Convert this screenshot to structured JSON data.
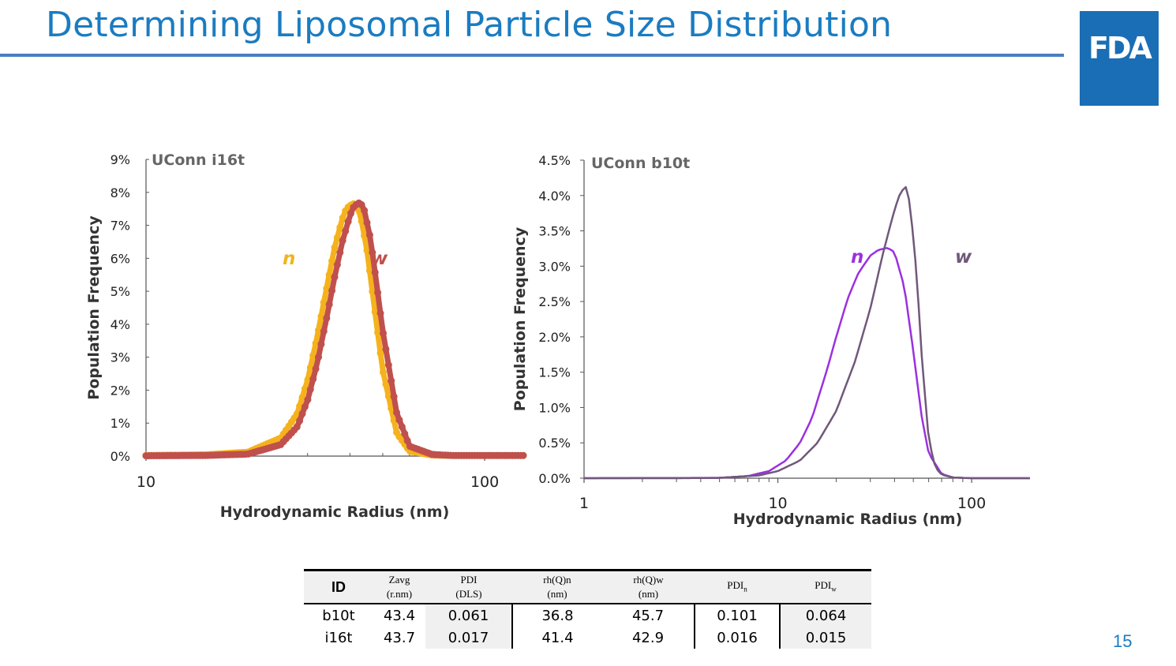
{
  "slide": {
    "title": "Determining Liposomal Particle Size Distribution",
    "logo_text": "FDA",
    "page_number": "15",
    "colors": {
      "title": "#1a7cc1",
      "rule": "#4a7fc0",
      "logo_bg": "#1a6eb5"
    }
  },
  "chart_data": [
    {
      "type": "line",
      "title": "UConn i16t",
      "xlabel": "Hydrodynamic Radius (nm)",
      "ylabel": "Population Frequency",
      "x_scale": "log",
      "xlim": [
        10,
        130
      ],
      "ylim": [
        0,
        9
      ],
      "y_unit": "%",
      "x_ticks": [
        10,
        100
      ],
      "y_ticks": [
        0,
        1,
        2,
        3,
        4,
        5,
        6,
        7,
        8,
        9
      ],
      "y_tick_labels": [
        "0%",
        "1%",
        "2%",
        "3%",
        "4%",
        "5%",
        "6%",
        "7%",
        "8%",
        "9%"
      ],
      "series_labels": [
        {
          "text": "n",
          "color": "#f2b31c"
        },
        {
          "text": "w",
          "color": "#c0504d"
        }
      ],
      "series": [
        {
          "name": "n",
          "color": "#f5b21c",
          "style": "markers",
          "peak_x": 41.4,
          "x": [
            10,
            15,
            20,
            25,
            28,
            30,
            32,
            34,
            36,
            38,
            39,
            40,
            41,
            41.4,
            42,
            43,
            45,
            47,
            50,
            55,
            60,
            70,
            80,
            100,
            130
          ],
          "y": [
            0.02,
            0.04,
            0.12,
            0.55,
            1.3,
            2.3,
            3.6,
            5.0,
            6.3,
            7.2,
            7.5,
            7.6,
            7.65,
            7.65,
            7.6,
            7.3,
            6.2,
            4.7,
            2.6,
            0.7,
            0.15,
            0.03,
            0.02,
            0.02,
            0.02
          ]
        },
        {
          "name": "w",
          "color": "#c0504d",
          "style": "markers",
          "peak_x": 42.9,
          "x": [
            10,
            15,
            20,
            25,
            28,
            30,
            32,
            34,
            36,
            38,
            40,
            41,
            42,
            42.9,
            44,
            46,
            48,
            50,
            55,
            60,
            70,
            80,
            100,
            130
          ],
          "y": [
            0.01,
            0.02,
            0.06,
            0.35,
            0.9,
            1.7,
            2.8,
            4.1,
            5.4,
            6.5,
            7.3,
            7.55,
            7.65,
            7.7,
            7.5,
            6.6,
            5.2,
            3.8,
            1.3,
            0.3,
            0.05,
            0.02,
            0.02,
            0.02
          ]
        }
      ]
    },
    {
      "type": "line",
      "title": "UConn b10t",
      "xlabel": "Hydrodynamic Radius (nm)",
      "ylabel": "Population Frequency",
      "x_scale": "log",
      "xlim": [
        1,
        200
      ],
      "ylim": [
        0,
        4.5
      ],
      "y_unit": "%",
      "x_ticks": [
        1,
        10,
        100
      ],
      "y_ticks": [
        0,
        0.5,
        1,
        1.5,
        2,
        2.5,
        3,
        3.5,
        4,
        4.5
      ],
      "y_tick_labels": [
        "0.0%",
        "0.5%",
        "1.0%",
        "1.5%",
        "2.0%",
        "2.5%",
        "3.0%",
        "3.5%",
        "4.0%",
        "4.5%"
      ],
      "series_labels": [
        {
          "text": "n",
          "color": "#9b30e0"
        },
        {
          "text": "w",
          "color": "#70587a"
        }
      ],
      "series": [
        {
          "name": "n",
          "color": "#9b30e0",
          "style": "line",
          "x": [
            1,
            3,
            5,
            7,
            9,
            11,
            13,
            15,
            18,
            20,
            23,
            26,
            30,
            33,
            36.8,
            40,
            45,
            50,
            55,
            60,
            70,
            80,
            100,
            200
          ],
          "y": [
            0,
            0,
            0.005,
            0.03,
            0.1,
            0.25,
            0.5,
            0.85,
            1.55,
            2.0,
            2.55,
            2.9,
            3.15,
            3.23,
            3.26,
            3.2,
            2.7,
            1.8,
            0.9,
            0.35,
            0.06,
            0.01,
            0,
            0
          ]
        },
        {
          "name": "w",
          "color": "#70587a",
          "style": "line",
          "x": [
            1,
            5,
            8,
            10,
            13,
            16,
            20,
            25,
            30,
            35,
            40,
            43,
            45.7,
            48,
            52,
            55,
            60,
            65,
            70,
            80,
            100,
            200
          ],
          "y": [
            0,
            0.005,
            0.04,
            0.1,
            0.25,
            0.5,
            0.95,
            1.65,
            2.4,
            3.2,
            3.8,
            4.05,
            4.12,
            3.9,
            2.9,
            1.8,
            0.55,
            0.15,
            0.05,
            0.01,
            0,
            0
          ]
        }
      ]
    }
  ],
  "table": {
    "headers": {
      "id": "ID",
      "zavg": [
        "Zavg",
        "(r.nm)"
      ],
      "pdi_dls": [
        "PDI",
        "(DLS)"
      ],
      "rhn": [
        "rh(Q)n",
        "(nm)"
      ],
      "rhw": [
        "rh(Q)w",
        "(nm)"
      ],
      "pdin": [
        "PDI",
        "n"
      ],
      "pdiw": [
        "PDI",
        "w"
      ]
    },
    "rows": [
      {
        "id": "b10t",
        "zavg": "43.4",
        "pdi_dls": "0.061",
        "rhn": "36.8",
        "rhw": "45.7",
        "pdin": "0.101",
        "pdiw": "0.064"
      },
      {
        "id": "i16t",
        "zavg": "43.7",
        "pdi_dls": "0.017",
        "rhn": "41.4",
        "rhw": "42.9",
        "pdin": "0.016",
        "pdiw": "0.015"
      }
    ]
  }
}
